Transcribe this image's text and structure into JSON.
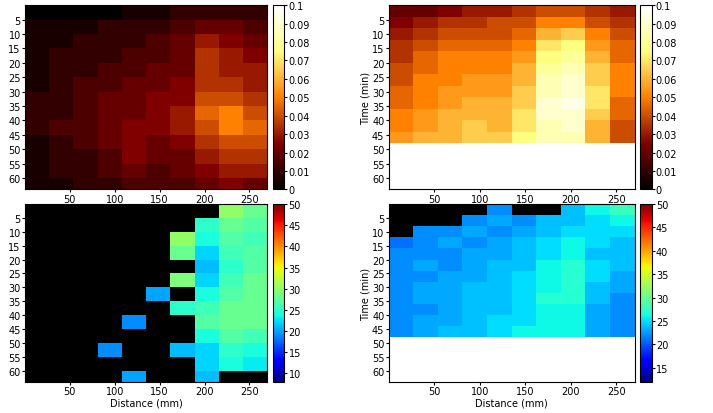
{
  "chart_data": [
    {
      "type": "heatmap",
      "color": "afmhot",
      "x_edges": [
        0,
        27,
        54,
        81,
        108,
        135,
        162,
        189,
        216,
        243,
        270
      ],
      "y_edges": [
        0,
        5,
        10,
        15,
        20,
        25,
        30,
        35,
        40,
        45,
        50,
        55,
        60,
        65
      ],
      "xlim": [
        0,
        270
      ],
      "ylim": [
        64,
        0
      ],
      "xticks": [
        50,
        100,
        150,
        200,
        250
      ],
      "yticks": [
        5,
        10,
        15,
        20,
        25,
        30,
        35,
        40,
        45,
        50,
        55,
        60
      ],
      "cells": [
        [
          0,
          0,
          0,
          0,
          0.005,
          0.005,
          0.01,
          0.01,
          0.01,
          0.01
        ],
        [
          0.005,
          0.005,
          0.005,
          0.01,
          0.01,
          0.01,
          0.015,
          0.02,
          0.02,
          0.015
        ],
        [
          0.005,
          0.005,
          0.01,
          0.01,
          0.01,
          0.015,
          0.02,
          0.03,
          0.025,
          0.02
        ],
        [
          0.005,
          0.01,
          0.01,
          0.01,
          0.015,
          0.015,
          0.02,
          0.035,
          0.03,
          0.025
        ],
        [
          0.005,
          0.01,
          0.01,
          0.015,
          0.015,
          0.02,
          0.02,
          0.035,
          0.03,
          0.03
        ],
        [
          0.005,
          0.01,
          0.015,
          0.015,
          0.02,
          0.02,
          0.025,
          0.035,
          0.035,
          0.03
        ],
        [
          0.01,
          0.01,
          0.015,
          0.02,
          0.02,
          0.025,
          0.025,
          0.04,
          0.04,
          0.035
        ],
        [
          0.01,
          0.01,
          0.015,
          0.02,
          0.02,
          0.025,
          0.03,
          0.045,
          0.05,
          0.04
        ],
        [
          0.01,
          0.015,
          0.015,
          0.02,
          0.025,
          0.025,
          0.03,
          0.04,
          0.05,
          0.045
        ],
        [
          0.005,
          0.01,
          0.015,
          0.02,
          0.025,
          0.02,
          0.025,
          0.035,
          0.04,
          0.04
        ],
        [
          0.005,
          0.01,
          0.01,
          0.015,
          0.025,
          0.02,
          0.02,
          0.03,
          0.035,
          0.035
        ],
        [
          0.005,
          0.01,
          0.01,
          0.015,
          0.02,
          0.015,
          0.02,
          0.025,
          0.03,
          0.03
        ],
        [
          0.005,
          0.005,
          0.01,
          0.01,
          0.015,
          0.015,
          0.015,
          0.02,
          0.025,
          0.02
        ]
      ],
      "colorbar": {
        "range": [
          0,
          0.1
        ],
        "ticks": [
          0,
          0.01,
          0.02,
          0.03,
          0.04,
          0.05,
          0.06,
          0.07,
          0.08,
          0.09,
          0.1
        ]
      }
    },
    {
      "type": "heatmap",
      "color": "afmhot",
      "y_label": "Time (min)",
      "x_edges": [
        0,
        27,
        54,
        81,
        108,
        135,
        162,
        189,
        216,
        243,
        270
      ],
      "y_edges": [
        0,
        4,
        8,
        12,
        16,
        20,
        24,
        28,
        32,
        36,
        40,
        44,
        48
      ],
      "xlim": [
        0,
        270
      ],
      "ylim": [
        64,
        0
      ],
      "xticks": [
        50,
        100,
        150,
        200,
        250
      ],
      "yticks": [
        5,
        10,
        15,
        20,
        25,
        30,
        35,
        40,
        45,
        50,
        55,
        60
      ],
      "cells": [
        [
          0.02,
          0.02,
          0.025,
          0.03,
          0.03,
          0.035,
          0.04,
          0.04,
          0.035,
          0.03
        ],
        [
          0.025,
          0.03,
          0.035,
          0.035,
          0.04,
          0.04,
          0.05,
          0.05,
          0.04,
          0.035
        ],
        [
          0.03,
          0.035,
          0.04,
          0.04,
          0.04,
          0.045,
          0.06,
          0.065,
          0.05,
          0.04
        ],
        [
          0.035,
          0.04,
          0.045,
          0.045,
          0.045,
          0.05,
          0.07,
          0.075,
          0.055,
          0.045
        ],
        [
          0.035,
          0.045,
          0.05,
          0.05,
          0.05,
          0.055,
          0.075,
          0.08,
          0.06,
          0.045
        ],
        [
          0.04,
          0.045,
          0.05,
          0.05,
          0.05,
          0.06,
          0.08,
          0.085,
          0.065,
          0.05
        ],
        [
          0.04,
          0.05,
          0.05,
          0.055,
          0.055,
          0.06,
          0.085,
          0.09,
          0.065,
          0.05
        ],
        [
          0.045,
          0.05,
          0.055,
          0.055,
          0.055,
          0.065,
          0.085,
          0.09,
          0.07,
          0.05
        ],
        [
          0.045,
          0.05,
          0.055,
          0.06,
          0.06,
          0.065,
          0.09,
          0.095,
          0.07,
          0.045
        ],
        [
          0.05,
          0.055,
          0.06,
          0.06,
          0.06,
          0.07,
          0.09,
          0.09,
          0.065,
          0.045
        ],
        [
          0.05,
          0.055,
          0.06,
          0.065,
          0.06,
          0.07,
          0.085,
          0.09,
          0.06,
          0.04
        ],
        [
          0.055,
          0.06,
          0.06,
          0.065,
          0.065,
          0.075,
          0.085,
          0.085,
          0.06,
          0.04
        ]
      ],
      "colorbar": {
        "range": [
          0,
          0.1
        ],
        "ticks": [
          0,
          0.01,
          0.02,
          0.03,
          0.04,
          0.05,
          0.06,
          0.07,
          0.08,
          0.09,
          0.1
        ]
      }
    },
    {
      "type": "heatmap",
      "color": "jet",
      "x_label": "Distance (mm)",
      "x_edges": [
        0,
        27,
        54,
        81,
        108,
        135,
        162,
        189,
        216,
        243,
        270
      ],
      "y_edges": [
        0,
        5,
        10,
        15,
        20,
        25,
        30,
        35,
        40,
        45,
        50,
        55,
        60,
        65
      ],
      "xlim": [
        0,
        270
      ],
      "ylim": [
        64,
        0
      ],
      "xticks": [
        50,
        100,
        150,
        200,
        250
      ],
      "yticks": [
        5,
        10,
        15,
        20,
        25,
        30,
        35,
        40,
        45,
        50,
        55,
        60
      ],
      "cells": [
        [
          null,
          null,
          null,
          null,
          null,
          null,
          null,
          null,
          30,
          28
        ],
        [
          null,
          null,
          null,
          null,
          null,
          null,
          null,
          25,
          28,
          27
        ],
        [
          null,
          null,
          null,
          null,
          null,
          null,
          30,
          24,
          27,
          26
        ],
        [
          null,
          null,
          null,
          null,
          null,
          null,
          28,
          22,
          26,
          27
        ],
        [
          null,
          null,
          null,
          null,
          null,
          null,
          null,
          21,
          25,
          27
        ],
        [
          null,
          null,
          null,
          null,
          null,
          null,
          29,
          22,
          26,
          28
        ],
        [
          null,
          null,
          null,
          null,
          null,
          20,
          null,
          24,
          27,
          28
        ],
        [
          null,
          null,
          null,
          null,
          null,
          null,
          25,
          26,
          28,
          28
        ],
        [
          null,
          null,
          null,
          null,
          19,
          null,
          null,
          27,
          28,
          28
        ],
        [
          null,
          null,
          null,
          null,
          null,
          null,
          null,
          24,
          27,
          26
        ],
        [
          null,
          null,
          null,
          19,
          null,
          null,
          21,
          22,
          25,
          24
        ],
        [
          null,
          null,
          null,
          null,
          null,
          null,
          null,
          22,
          24,
          23
        ],
        [
          null,
          null,
          null,
          null,
          20,
          null,
          null,
          21,
          null,
          null
        ]
      ],
      "colorbar": {
        "range": [
          8,
          50
        ],
        "ticks": [
          10,
          15,
          20,
          25,
          30,
          35,
          40,
          45,
          50
        ]
      }
    },
    {
      "type": "heatmap",
      "color": "jet",
      "x_label": "Distance (mm)",
      "y_label": "Time (min)",
      "x_edges": [
        0,
        27,
        54,
        81,
        108,
        135,
        162,
        189,
        216,
        243,
        270
      ],
      "y_edges": [
        0,
        4,
        8,
        12,
        16,
        20,
        24,
        28,
        32,
        36,
        40,
        44,
        48
      ],
      "xlim": [
        0,
        270
      ],
      "ylim": [
        64,
        0
      ],
      "xticks": [
        50,
        100,
        150,
        200,
        250
      ],
      "yticks": [
        5,
        10,
        15,
        20,
        25,
        30,
        35,
        40,
        45,
        50,
        55,
        60
      ],
      "cells": [
        [
          null,
          null,
          null,
          null,
          22,
          null,
          null,
          24,
          26,
          28
        ],
        [
          null,
          null,
          null,
          22,
          23,
          22,
          24,
          24,
          25,
          26
        ],
        [
          null,
          22,
          22,
          23,
          22,
          23,
          24,
          25,
          25,
          25
        ],
        [
          21,
          22,
          23,
          22,
          23,
          24,
          25,
          26,
          25,
          24
        ],
        [
          22,
          22,
          22,
          23,
          23,
          24,
          25,
          26,
          24,
          24
        ],
        [
          22,
          23,
          22,
          23,
          24,
          24,
          26,
          27,
          25,
          24
        ],
        [
          22,
          22,
          23,
          23,
          24,
          25,
          26,
          27,
          25,
          23
        ],
        [
          22,
          23,
          23,
          24,
          24,
          25,
          26,
          27,
          24,
          23
        ],
        [
          22,
          23,
          23,
          24,
          24,
          25,
          27,
          27,
          24,
          22
        ],
        [
          22,
          22,
          23,
          24,
          24,
          25,
          26,
          26,
          23,
          22
        ],
        [
          22,
          23,
          23,
          24,
          25,
          25,
          26,
          26,
          23,
          22
        ],
        [
          22,
          23,
          24,
          24,
          25,
          26,
          26,
          26,
          23,
          22
        ]
      ],
      "colorbar": {
        "range": [
          12,
          50
        ],
        "ticks": [
          15,
          20,
          25,
          30,
          35,
          40,
          45,
          50
        ]
      }
    }
  ]
}
